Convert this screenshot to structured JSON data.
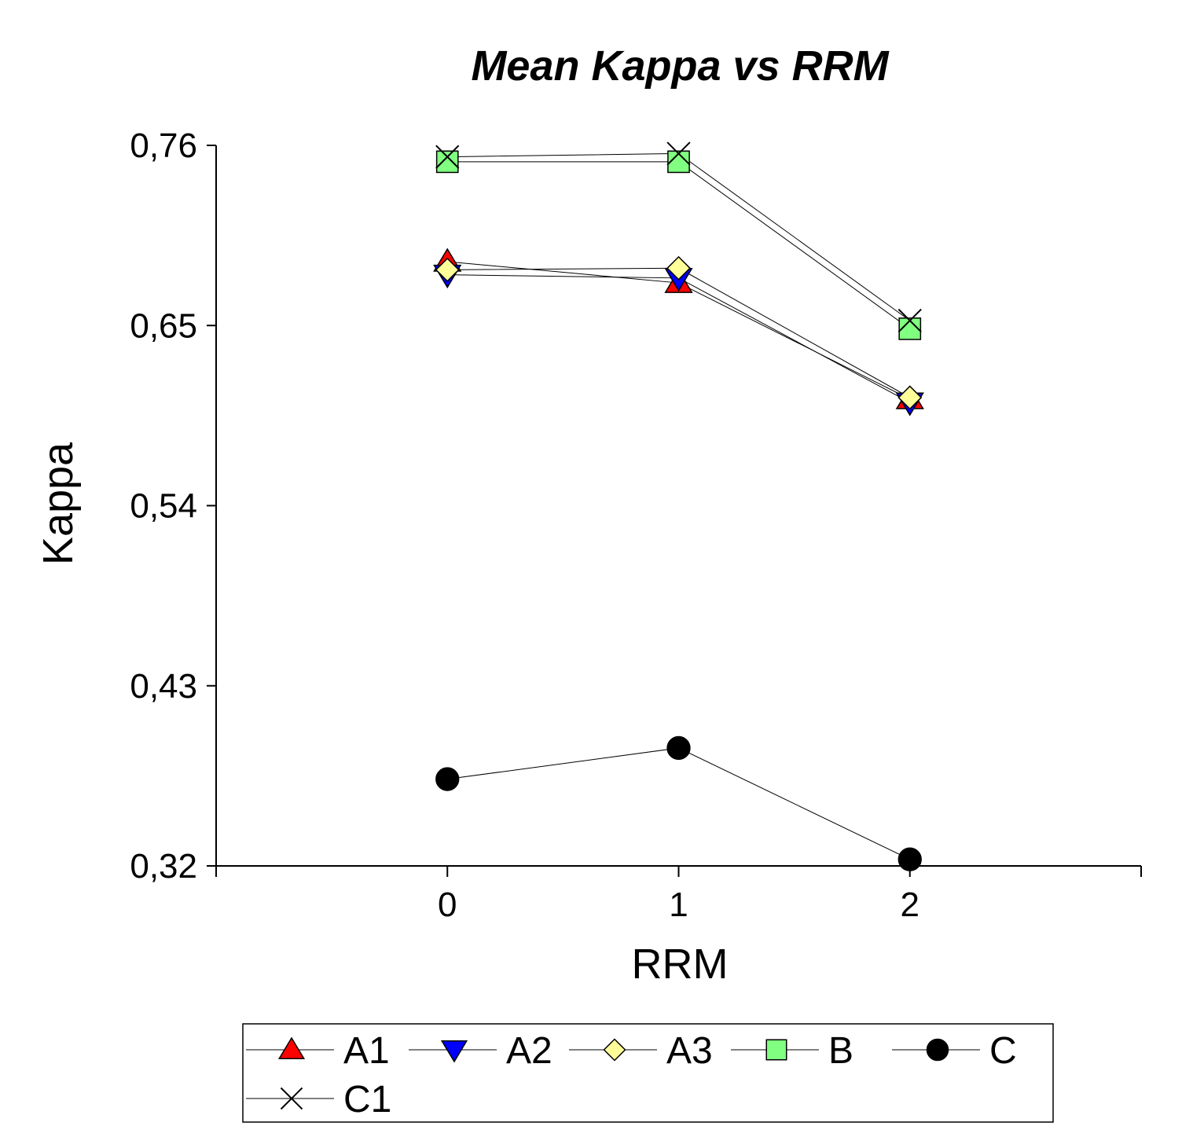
{
  "chart_data": {
    "type": "line",
    "title": "Mean Kappa vs RRM",
    "xlabel": "RRM",
    "ylabel": "Kappa",
    "x": [
      0,
      1,
      2
    ],
    "x_ticks": [
      "0",
      "1",
      "2"
    ],
    "xlim": [
      -1,
      3
    ],
    "ylim": [
      0.32,
      0.76
    ],
    "y_ticks": [
      "0,76",
      "0,65",
      "0,54",
      "0,43",
      "0,32"
    ],
    "y_tick_values": [
      0.76,
      0.65,
      0.54,
      0.43,
      0.32
    ],
    "grid": false,
    "legend_position": "bottom",
    "series": [
      {
        "name": "A1",
        "marker": "triangle-up-icon",
        "color": "#ff0000",
        "values": [
          0.689,
          0.676,
          0.605
        ]
      },
      {
        "name": "A2",
        "marker": "triangle-down-icon",
        "color": "#0000ff",
        "values": [
          0.681,
          0.679,
          0.603
        ]
      },
      {
        "name": "A3",
        "marker": "diamond-icon",
        "color": "#ffff99",
        "values": [
          0.684,
          0.685,
          0.606
        ]
      },
      {
        "name": "B",
        "marker": "square-icon",
        "color": "#80ff80",
        "values": [
          0.75,
          0.75,
          0.648
        ]
      },
      {
        "name": "C",
        "marker": "circle-icon",
        "color": "#000000",
        "values": [
          0.373,
          0.392,
          0.324
        ]
      },
      {
        "name": "C1",
        "marker": "x-icon",
        "color": "#000000",
        "values": [
          0.753,
          0.755,
          0.653
        ]
      }
    ]
  }
}
